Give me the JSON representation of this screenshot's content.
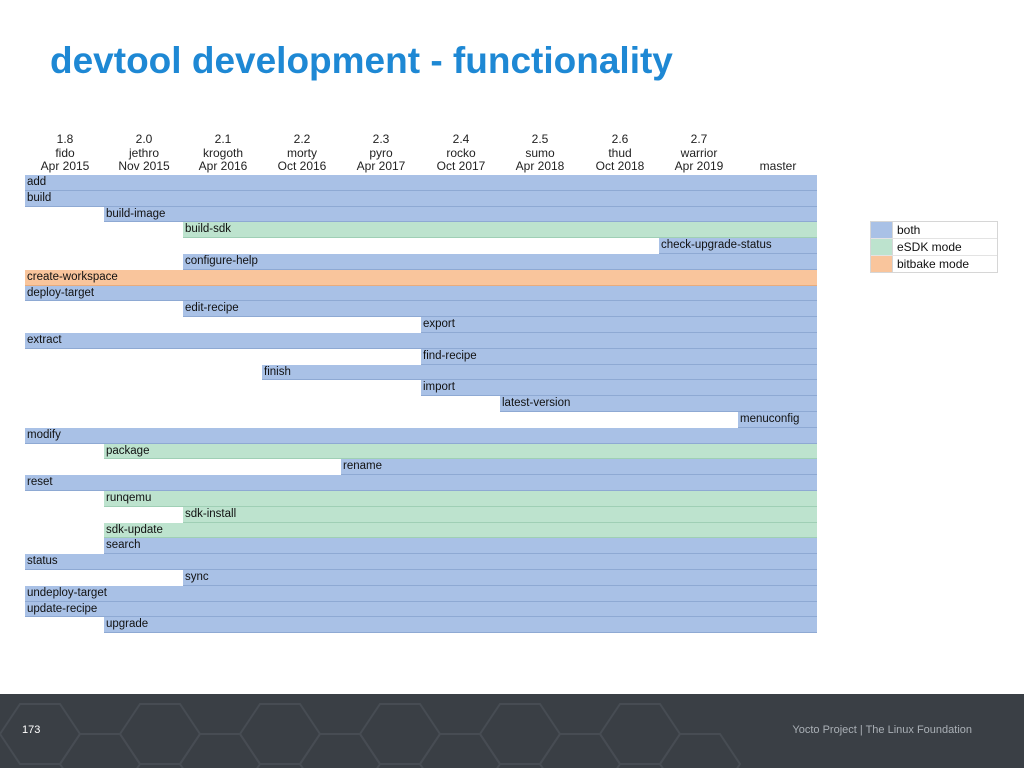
{
  "title": "devtool development - functionality",
  "versions": [
    {
      "num": "1.8",
      "name": "fido",
      "date": "Apr 2015"
    },
    {
      "num": "2.0",
      "name": "jethro",
      "date": "Nov 2015"
    },
    {
      "num": "2.1",
      "name": "krogoth",
      "date": "Apr 2016"
    },
    {
      "num": "2.2",
      "name": "morty",
      "date": "Oct 2016"
    },
    {
      "num": "2.3",
      "name": "pyro",
      "date": "Apr 2017"
    },
    {
      "num": "2.4",
      "name": "rocko",
      "date": "Oct 2017"
    },
    {
      "num": "2.5",
      "name": "sumo",
      "date": "Apr 2018"
    },
    {
      "num": "2.6",
      "name": "thud",
      "date": "Oct 2018"
    },
    {
      "num": "2.7",
      "name": "warrior",
      "date": "Apr 2019"
    },
    {
      "num": "",
      "name": "",
      "date": "master"
    }
  ],
  "commands": [
    {
      "label": "add",
      "start": 0,
      "mode": "both"
    },
    {
      "label": "build",
      "start": 0,
      "mode": "both"
    },
    {
      "label": "build-image",
      "start": 1,
      "mode": "both"
    },
    {
      "label": "build-sdk",
      "start": 2,
      "mode": "esdk"
    },
    {
      "label": "check-upgrade-status",
      "start": 8,
      "mode": "both"
    },
    {
      "label": "configure-help",
      "start": 2,
      "mode": "both"
    },
    {
      "label": "create-workspace",
      "start": 0,
      "mode": "bitbake"
    },
    {
      "label": "deploy-target",
      "start": 0,
      "mode": "both"
    },
    {
      "label": "edit-recipe",
      "start": 2,
      "mode": "both"
    },
    {
      "label": "export",
      "start": 5,
      "mode": "both"
    },
    {
      "label": "extract",
      "start": 0,
      "mode": "both"
    },
    {
      "label": "find-recipe",
      "start": 5,
      "mode": "both"
    },
    {
      "label": "finish",
      "start": 3,
      "mode": "both"
    },
    {
      "label": "import",
      "start": 5,
      "mode": "both"
    },
    {
      "label": "latest-version",
      "start": 6,
      "mode": "both"
    },
    {
      "label": "menuconfig",
      "start": 9,
      "mode": "both"
    },
    {
      "label": "modify",
      "start": 0,
      "mode": "both"
    },
    {
      "label": "package",
      "start": 1,
      "mode": "esdk"
    },
    {
      "label": "rename",
      "start": 4,
      "mode": "both"
    },
    {
      "label": "reset",
      "start": 0,
      "mode": "both"
    },
    {
      "label": "runqemu",
      "start": 1,
      "mode": "esdk"
    },
    {
      "label": "sdk-install",
      "start": 2,
      "mode": "esdk"
    },
    {
      "label": "sdk-update",
      "start": 1,
      "mode": "esdk"
    },
    {
      "label": "search",
      "start": 1,
      "mode": "both"
    },
    {
      "label": "status",
      "start": 0,
      "mode": "both"
    },
    {
      "label": "sync",
      "start": 2,
      "mode": "both"
    },
    {
      "label": "undeploy-target",
      "start": 0,
      "mode": "both"
    },
    {
      "label": "update-recipe",
      "start": 0,
      "mode": "both"
    },
    {
      "label": "upgrade",
      "start": 1,
      "mode": "both"
    }
  ],
  "legend": [
    {
      "label": "both",
      "mode": "both"
    },
    {
      "label": "eSDK mode",
      "mode": "esdk"
    },
    {
      "label": "bitbake mode",
      "mode": "bitbake"
    }
  ],
  "colors": {
    "both": "#a9c1e6",
    "esdk": "#bde3ce",
    "bitbake": "#f9c59c",
    "title": "#1e88d4"
  },
  "footer": {
    "page_number": "173",
    "text": "Yocto Project | The Linux Foundation"
  }
}
